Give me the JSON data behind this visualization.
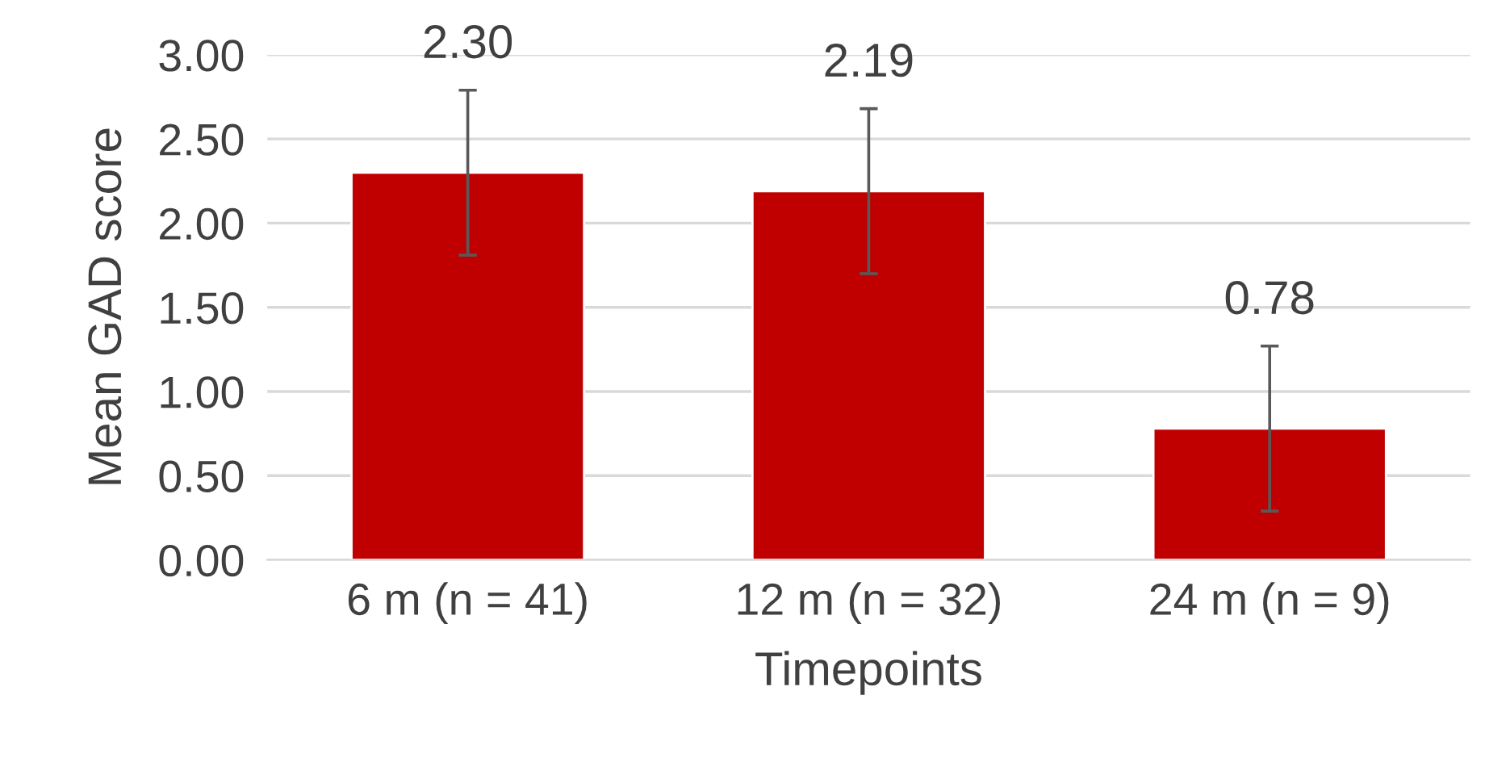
{
  "chart_data": {
    "type": "bar",
    "xlabel": "Timepoints",
    "ylabel": "Mean GAD score",
    "categories": [
      "6 m (n = 41)",
      "12 m (n = 32)",
      "24 m (n = 9)"
    ],
    "values": [
      2.3,
      2.19,
      0.78
    ],
    "color": "#c00000",
    "errors": [
      0.49,
      0.49,
      0.49
    ],
    "value_labels": [
      "2.30",
      "2.19",
      "0.78"
    ],
    "ylim": [
      0,
      3
    ],
    "yticks": [
      {
        "value": 0,
        "label": "0.00"
      },
      {
        "value": 0.5,
        "label": "0.50"
      },
      {
        "value": 1,
        "label": "1.00"
      },
      {
        "value": 1.5,
        "label": "1.50"
      },
      {
        "value": 2,
        "label": "2.00"
      },
      {
        "value": 2.5,
        "label": "2.50"
      },
      {
        "value": 3,
        "label": "3.00"
      }
    ],
    "grid": "y"
  }
}
